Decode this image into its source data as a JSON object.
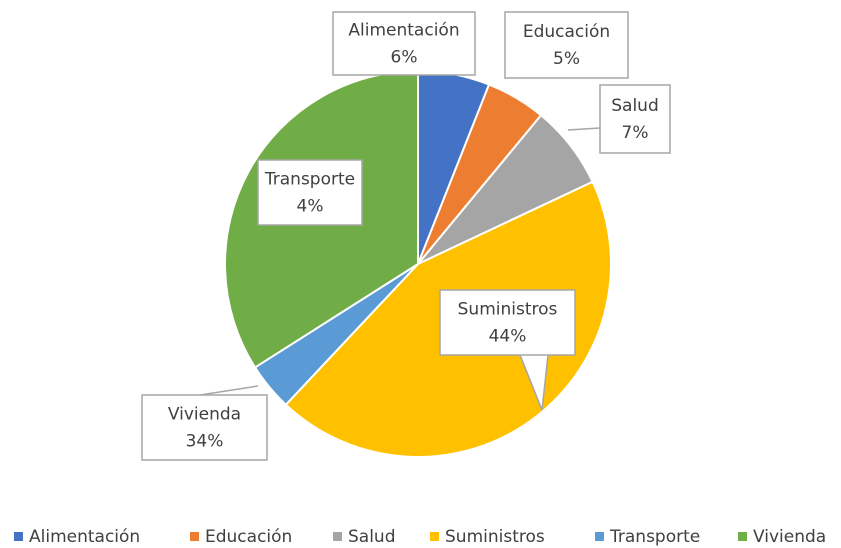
{
  "chart_data": {
    "type": "pie",
    "categories": [
      "Alimentación",
      "Educación",
      "Salud",
      "Suministros",
      "Transporte",
      "Vivienda"
    ],
    "values": [
      6,
      5,
      7,
      44,
      4,
      34
    ],
    "value_labels": [
      "6%",
      "5%",
      "7%",
      "44%",
      "4%",
      "34%"
    ],
    "colors": [
      "#4472c4",
      "#ed7d31",
      "#a5a5a5",
      "#ffc000",
      "#5b9bd5",
      "#70ad47"
    ],
    "legend": "bottom"
  }
}
